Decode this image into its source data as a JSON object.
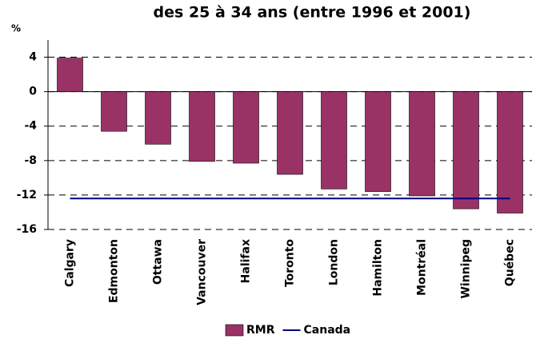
{
  "chart_data": {
    "type": "bar",
    "title": "des 25 à 34 ans (entre 1996 et 2001)",
    "y_label": "%",
    "categories": [
      "Calgary",
      "Edmonton",
      "Ottawa",
      "Vancouver",
      "Halifax",
      "Toronto",
      "London",
      "Hamilton",
      "Montréal",
      "Winnipeg",
      "Québec"
    ],
    "series": [
      {
        "name": "RMR",
        "color": "#993366",
        "type": "bar",
        "values": [
          3.9,
          -4.6,
          -6.1,
          -8.1,
          -8.3,
          -9.6,
          -11.3,
          -11.6,
          -12.1,
          -13.6,
          -14.1
        ]
      },
      {
        "name": "Canada",
        "color": "#000080",
        "type": "line",
        "values": [
          -12.4,
          -12.4,
          -12.4,
          -12.4,
          -12.4,
          -12.4,
          -12.4,
          -12.4,
          -12.4,
          -12.4,
          -12.4
        ]
      }
    ],
    "ylim": [
      -16,
      6
    ],
    "yticks": [
      -16,
      -12,
      -8,
      -4,
      0,
      4
    ],
    "grid": true,
    "legend": "bottom"
  }
}
